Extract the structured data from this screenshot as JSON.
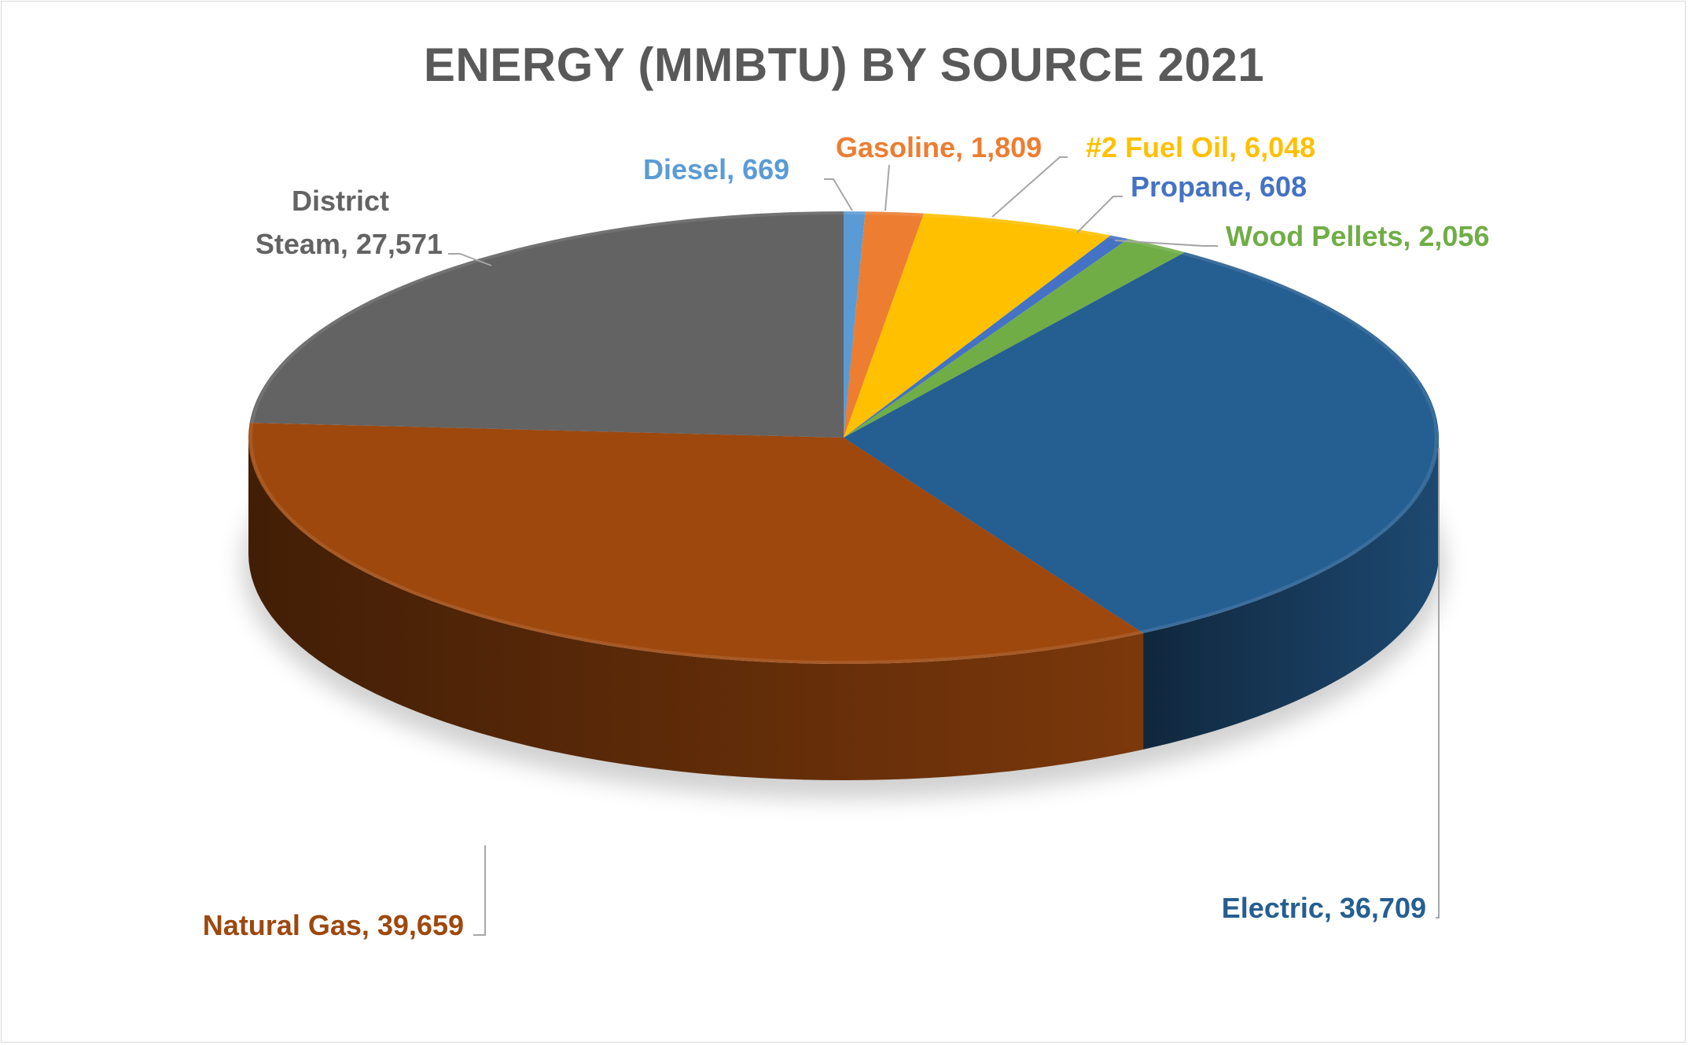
{
  "chart_data": {
    "type": "pie",
    "style": "3d",
    "title": "ENERGY (MMBTU) BY SOURCE 2021",
    "legend": "none",
    "slices": [
      {
        "name": "Diesel",
        "value": 669,
        "value_label": "669",
        "color": "#5b9bd5"
      },
      {
        "name": "Gasoline",
        "value": 1809,
        "value_label": "1,809",
        "color": "#ed7d31"
      },
      {
        "name": "#2 Fuel Oil",
        "value": 6048,
        "value_label": "6,048",
        "color": "#ffc000"
      },
      {
        "name": "Propane",
        "value": 608,
        "value_label": "608",
        "color": "#4472c4"
      },
      {
        "name": "Wood Pellets",
        "value": 2056,
        "value_label": "2,056",
        "color": "#70ad47"
      },
      {
        "name": "Electric",
        "value": 36709,
        "value_label": "36,709",
        "color": "#255e91"
      },
      {
        "name": "Natural Gas",
        "value": 39659,
        "value_label": "39,659",
        "color": "#9e480e"
      },
      {
        "name": "District Steam",
        "value": 27571,
        "value_label": "27,571",
        "color": "#636363"
      }
    ]
  },
  "colors": {
    "title": "#595959",
    "leader": "#a6a6a6",
    "frame_border": "#d9d9d9"
  }
}
